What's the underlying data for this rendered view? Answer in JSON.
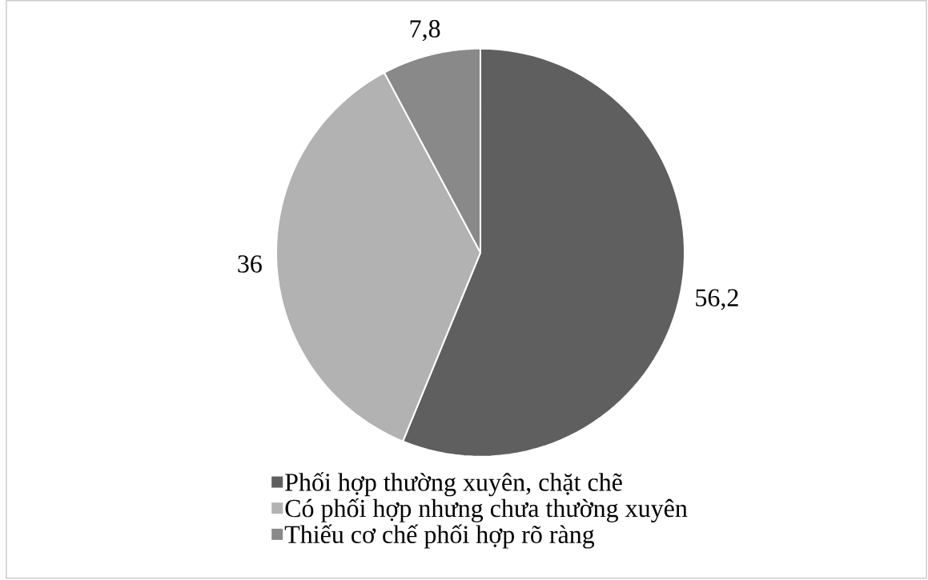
{
  "chart_data": {
    "type": "pie",
    "categories": [
      "Phối hợp thường xuyên, chặt chẽ",
      "Có phối hợp nhưng chưa thường xuyên",
      "Thiếu cơ chế phối hợp rõ ràng"
    ],
    "values": [
      56.2,
      36,
      7.8
    ],
    "colors": [
      "#5f5f5f",
      "#b2b2b2",
      "#898989"
    ],
    "value_labels": [
      "56,2",
      "36",
      "7,8"
    ],
    "legend": "bottom"
  }
}
